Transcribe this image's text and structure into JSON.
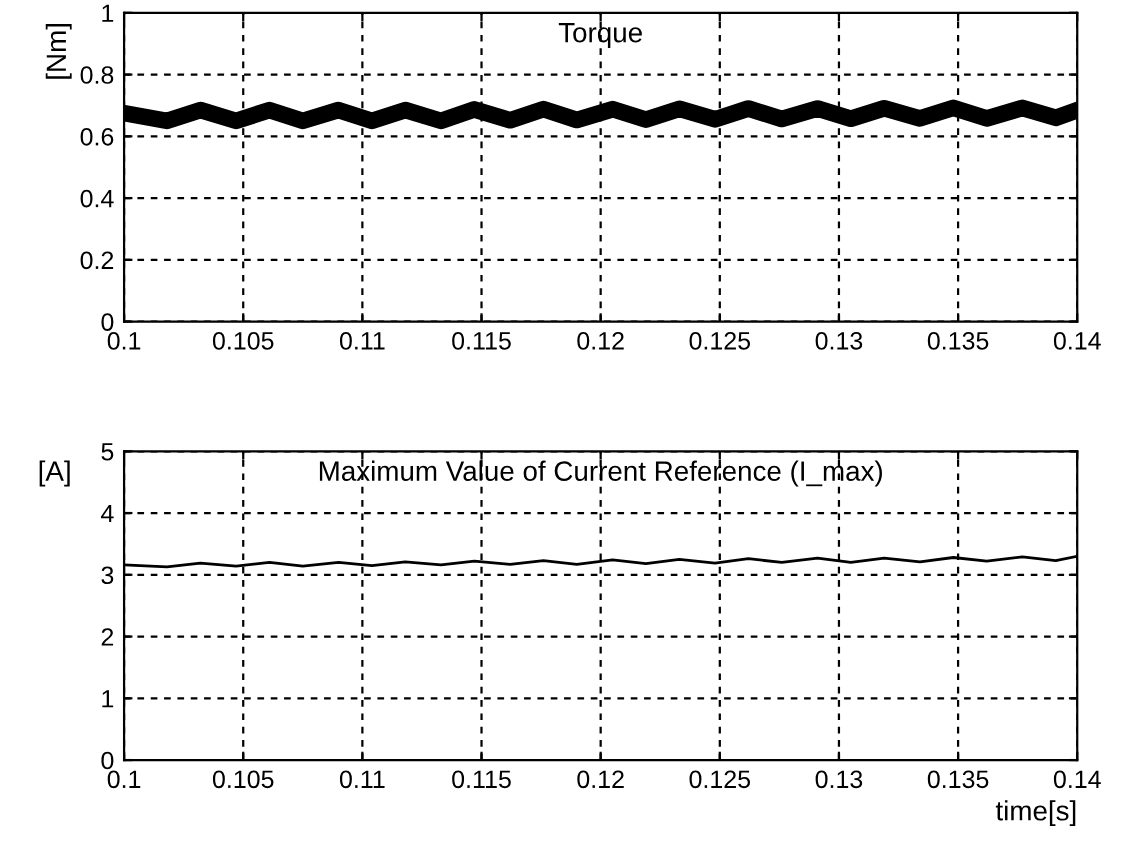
{
  "chart_data": [
    {
      "type": "line",
      "title": "Torque",
      "ylabel": "[Nm]",
      "xlim": [
        0.1,
        0.14
      ],
      "xticks": [
        0.1,
        0.105,
        0.11,
        0.115,
        0.12,
        0.125,
        0.13,
        0.135,
        0.14
      ],
      "ylim": [
        0,
        1
      ],
      "yticks": [
        0,
        0.2,
        0.4,
        0.6,
        0.8,
        1
      ],
      "grid": true,
      "line_style": "solid",
      "x": [
        0.1,
        0.1018,
        0.1032,
        0.1047,
        0.1061,
        0.1075,
        0.109,
        0.1104,
        0.1118,
        0.1133,
        0.1147,
        0.1162,
        0.1176,
        0.119,
        0.1205,
        0.1219,
        0.1233,
        0.1248,
        0.1262,
        0.1276,
        0.1291,
        0.1305,
        0.1319,
        0.1334,
        0.1348,
        0.1362,
        0.1377,
        0.1391,
        0.14
      ],
      "series": [
        {
          "color": "#000000",
          "values": [
            0.675,
            0.65,
            0.685,
            0.65,
            0.685,
            0.65,
            0.685,
            0.65,
            0.685,
            0.65,
            0.687,
            0.652,
            0.688,
            0.653,
            0.688,
            0.654,
            0.689,
            0.655,
            0.69,
            0.656,
            0.69,
            0.657,
            0.691,
            0.658,
            0.692,
            0.658,
            0.692,
            0.66,
            0.685
          ]
        }
      ]
    },
    {
      "type": "line",
      "title": "Maximum Value of Current Reference (I_max)",
      "ylabel": "[A]",
      "xlabel": "time[s]",
      "xlim": [
        0.1,
        0.14
      ],
      "xticks": [
        0.1,
        0.105,
        0.11,
        0.115,
        0.12,
        0.125,
        0.13,
        0.135,
        0.14
      ],
      "ylim": [
        0,
        5
      ],
      "yticks": [
        0,
        1,
        2,
        3,
        4,
        5
      ],
      "grid": true,
      "line_style": "solid",
      "x": [
        0.1,
        0.1018,
        0.1032,
        0.1047,
        0.1061,
        0.1075,
        0.109,
        0.1104,
        0.1118,
        0.1133,
        0.1147,
        0.1162,
        0.1176,
        0.119,
        0.1205,
        0.1219,
        0.1233,
        0.1248,
        0.1262,
        0.1276,
        0.1291,
        0.1305,
        0.1319,
        0.1334,
        0.1348,
        0.1362,
        0.1377,
        0.1391,
        0.14
      ],
      "series": [
        {
          "color": "#000000",
          "values": [
            3.16,
            3.13,
            3.19,
            3.14,
            3.2,
            3.14,
            3.2,
            3.15,
            3.21,
            3.16,
            3.22,
            3.17,
            3.23,
            3.17,
            3.24,
            3.18,
            3.25,
            3.19,
            3.26,
            3.2,
            3.27,
            3.2,
            3.27,
            3.21,
            3.28,
            3.22,
            3.29,
            3.23,
            3.3
          ]
        }
      ]
    }
  ]
}
